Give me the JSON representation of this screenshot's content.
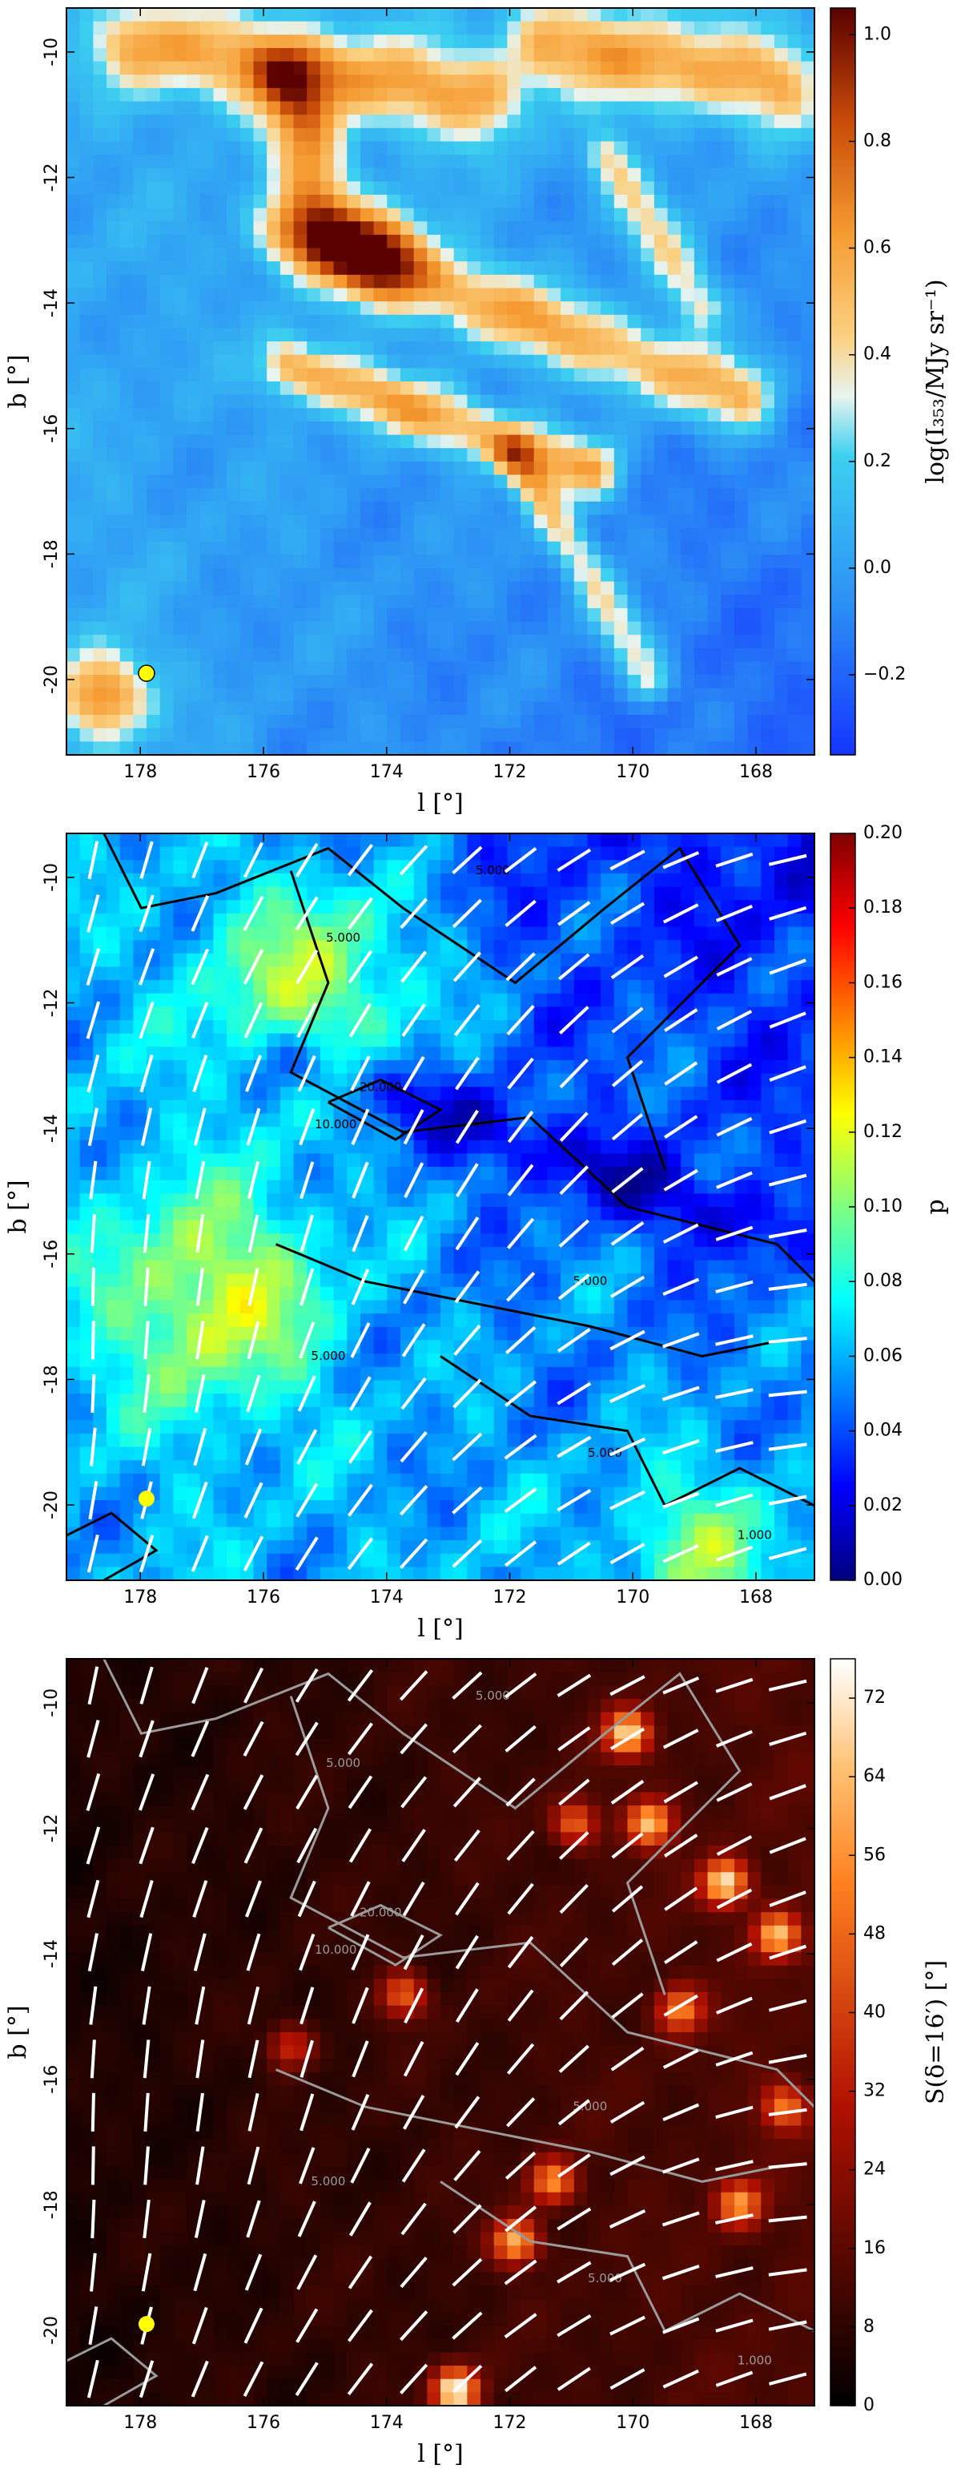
{
  "chart_data": [
    {
      "type": "heatmap",
      "xlabel": "l [°]",
      "ylabel": "b [°]",
      "xlim": [
        179.2,
        167.05
      ],
      "ylim": [
        -21.2,
        -9.3
      ],
      "xticks": [
        178,
        176,
        174,
        172,
        170,
        168
      ],
      "yticks": [
        -10,
        -12,
        -14,
        -16,
        -18,
        -20
      ],
      "colormap": "RdYlBu_r",
      "marker": {
        "x": 177.9,
        "y": -19.9,
        "color": "#ffff00"
      },
      "colorbar": {
        "label": "log(I₃₅₃/MJy sr⁻¹)",
        "lim": [
          -0.35,
          1.05
        ],
        "ticks": [
          {
            "value": -0.2,
            "label": "−0.2"
          },
          {
            "value": 0,
            "label": "0.0"
          },
          0.2,
          0.4,
          0.6,
          0.8,
          {
            "value": 1,
            "label": "1.0"
          }
        ]
      }
    },
    {
      "type": "heatmap",
      "xlabel": "l [°]",
      "ylabel": "b [°]",
      "xlim": [
        179.2,
        167.05
      ],
      "ylim": [
        -21.2,
        -9.3
      ],
      "xticks": [
        178,
        176,
        174,
        172,
        170,
        168
      ],
      "yticks": [
        -10,
        -12,
        -14,
        -16,
        -18,
        -20
      ],
      "colormap": "jet",
      "vectors": true,
      "contour_color": "#000000",
      "marker": {
        "x": 177.9,
        "y": -19.9,
        "color": "#ffff00"
      },
      "contour_labels": [
        "5.000",
        "5.000",
        "20.000",
        "10.000",
        "5.000",
        "5.000",
        "5.000",
        "1.000"
      ],
      "colorbar": {
        "label": "p",
        "lim": [
          0,
          0.2
        ],
        "ticks": [
          {
            "value": 0,
            "label": "0.00"
          },
          {
            "value": 0.02,
            "label": "0.02"
          },
          {
            "value": 0.04,
            "label": "0.04"
          },
          {
            "value": 0.06,
            "label": "0.06"
          },
          {
            "value": 0.08,
            "label": "0.08"
          },
          {
            "value": 0.1,
            "label": "0.10"
          },
          {
            "value": 0.12,
            "label": "0.12"
          },
          {
            "value": 0.14,
            "label": "0.14"
          },
          {
            "value": 0.16,
            "label": "0.16"
          },
          {
            "value": 0.18,
            "label": "0.18"
          },
          {
            "value": 0.2,
            "label": "0.20"
          }
        ]
      }
    },
    {
      "type": "heatmap",
      "xlabel": "l [°]",
      "ylabel": "b [°]",
      "xlim": [
        179.2,
        167.05
      ],
      "ylim": [
        -21.2,
        -9.3
      ],
      "xticks": [
        178,
        176,
        174,
        172,
        170,
        168
      ],
      "yticks": [
        -10,
        -12,
        -14,
        -16,
        -18,
        -20
      ],
      "colormap": "afmhot",
      "vectors": true,
      "contour_color": "#9a9a9a",
      "marker": {
        "x": 177.9,
        "y": -19.9,
        "color": "#ffff00"
      },
      "contour_labels": [
        "5.000",
        "5.000",
        "20.000",
        "10.000",
        "5.000",
        "5.000",
        "5.000",
        "1.000"
      ],
      "colorbar": {
        "label": "S(δ=16′) [°]",
        "lim": [
          0,
          76
        ],
        "ticks": [
          0,
          8,
          16,
          24,
          32,
          40,
          48,
          56,
          64,
          72
        ]
      }
    }
  ]
}
